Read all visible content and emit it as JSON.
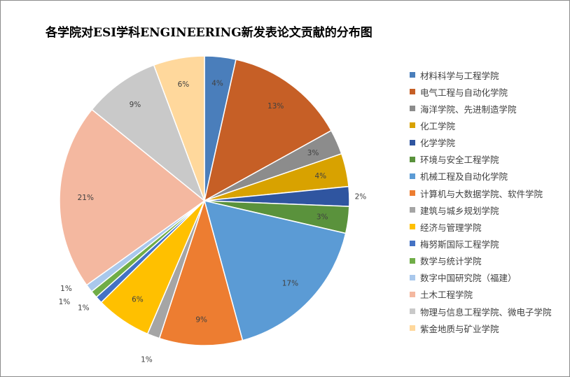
{
  "chart_data": {
    "type": "pie",
    "title": "各学院对ESI学科ENGINEERING新发表论文贡献的分布图",
    "legend_position": "right",
    "slices": [
      {
        "name": "材料科学与工程学院",
        "value": 3.5,
        "label": "4%",
        "color": "#4a7ebb"
      },
      {
        "name": "电气工程与自动化学院",
        "value": 13.5,
        "label": "13%",
        "color": "#c65f26"
      },
      {
        "name": "海洋学院、先进制造学院",
        "value": 2.8,
        "label": "3%",
        "color": "#8c8c8c"
      },
      {
        "name": "化工学院",
        "value": 3.7,
        "label": "4%",
        "color": "#d8a200"
      },
      {
        "name": "化学学院",
        "value": 2.2,
        "label": "2%",
        "color": "#2f55a0"
      },
      {
        "name": "环境与安全工程学院",
        "value": 3.0,
        "label": "3%",
        "color": "#5a923c"
      },
      {
        "name": "机械工程及自动化学院",
        "value": 17.2,
        "label": "17%",
        "color": "#5b9bd5"
      },
      {
        "name": "计算机与大数据学院、软件学院",
        "value": 9.3,
        "label": "9%",
        "color": "#ed7d31"
      },
      {
        "name": "建筑与城乡规划学院",
        "value": 1.4,
        "label": "1%",
        "color": "#a5a5a5"
      },
      {
        "name": "经济与管理学院",
        "value": 6.2,
        "label": "6%",
        "color": "#ffc000"
      },
      {
        "name": "梅努斯国际工程学院",
        "value": 0.8,
        "label": "1%",
        "color": "#4472c4"
      },
      {
        "name": "数学与统计学院",
        "value": 0.8,
        "label": "1%",
        "color": "#70ad47"
      },
      {
        "name": "数字中国研究院（福建）",
        "value": 0.9,
        "label": "1%",
        "color": "#a9c8ec"
      },
      {
        "name": "土木工程学院",
        "value": 20.8,
        "label": "21%",
        "color": "#f4b8a0"
      },
      {
        "name": "物理与信息工程学院、微电子学院",
        "value": 8.5,
        "label": "9%",
        "color": "#c9c9c9"
      },
      {
        "name": "紫金地质与矿业学院",
        "value": 5.7,
        "label": "6%",
        "color": "#ffd89c"
      }
    ]
  }
}
